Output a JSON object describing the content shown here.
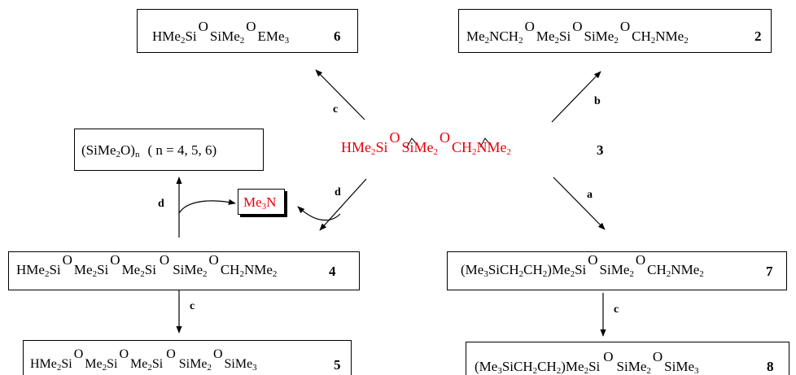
{
  "colors": {
    "highlight": "#e8000b",
    "ink": "#000000"
  },
  "compound6": {
    "p1": "HMe",
    "s1": "2",
    "p2": "Si",
    "o1": "O",
    "p3": "SiMe",
    "s2": "2",
    "o2": "O",
    "p4": "EMe",
    "s3": "3",
    "num": "6"
  },
  "compound2": {
    "p1": "Me",
    "s1": "2",
    "p2": "NCH",
    "s2": "2",
    "o1": "O",
    "p3": "Me",
    "s3": "2",
    "p4": "Si",
    "o2": "O",
    "p5": "SiMe",
    "s4": "2",
    "o3": "O",
    "p6": "CH",
    "s5": "2",
    "p7": "NMe",
    "s6": "2",
    "num": "2"
  },
  "compound3": {
    "p1": "HMe",
    "s1": "2",
    "p2": "Si",
    "o1": "O",
    "p3": "SiMe",
    "s2": "2",
    "o2": "O",
    "p4": "CH",
    "s3": "2",
    "p5": "NMe",
    "s4": "2",
    "num": "3"
  },
  "cyclics": {
    "p1": "(SiMe",
    "s1": "2",
    "p2": "O)",
    "s2": "n",
    "p3": "( n = 4, 5, 6)"
  },
  "trimethylamine": {
    "p1": "Me",
    "s1": "3",
    "p2": "N"
  },
  "compound4": {
    "p1": "HMe",
    "s1": "2",
    "p2": "Si",
    "o1": "O",
    "p3": "Me",
    "s2": "2",
    "p4": "Si",
    "o2": "O",
    "p5": "Me",
    "s3": "2",
    "p6": "Si",
    "o3": "O",
    "p7": "SiMe",
    "s4": "2",
    "o4": "O",
    "p8": "CH",
    "s5": "2",
    "p9": "NMe",
    "s6": "2",
    "num": "4"
  },
  "compound5": {
    "p1": "HMe",
    "s1": "2",
    "p2": "Si",
    "o1": "O",
    "p3": "Me",
    "s2": "2",
    "p4": "Si",
    "o2": "O",
    "p5": "Me",
    "s3": "2",
    "p6": "Si",
    "o3": "O",
    "p7": "SiMe",
    "s4": "2",
    "o4": "O",
    "p8": "SiMe",
    "s5": "3",
    "num": "5"
  },
  "compound7": {
    "p1": "(Me",
    "s1": "3",
    "p2": "SiCH",
    "s2": "2",
    "p3": "CH",
    "s3": "2",
    "p4": ")Me",
    "s4": "2",
    "p5": "Si",
    "o1": "O",
    "p6": "SiMe",
    "s5": "2",
    "o2": "O",
    "p7": "CH",
    "s6": "2",
    "p8": "NMe",
    "s7": "2",
    "num": "7"
  },
  "compound8": {
    "p1": "(Me",
    "s1": "3",
    "p2": "SiCH",
    "s2": "2",
    "p3": "CH",
    "s3": "2",
    "p4": ")Me",
    "s4": "2",
    "p5": "Si",
    "o1": "O",
    "p6": "SiMe",
    "s5": "2",
    "o2": "O",
    "p7": "SiMe",
    "s6": "3",
    "num": "8"
  },
  "reagents": {
    "to6": "c",
    "to2": "b",
    "to7": "a",
    "to4": "d",
    "to_cyclics": "d",
    "4_to_5": "c",
    "7_to_8": "c"
  }
}
